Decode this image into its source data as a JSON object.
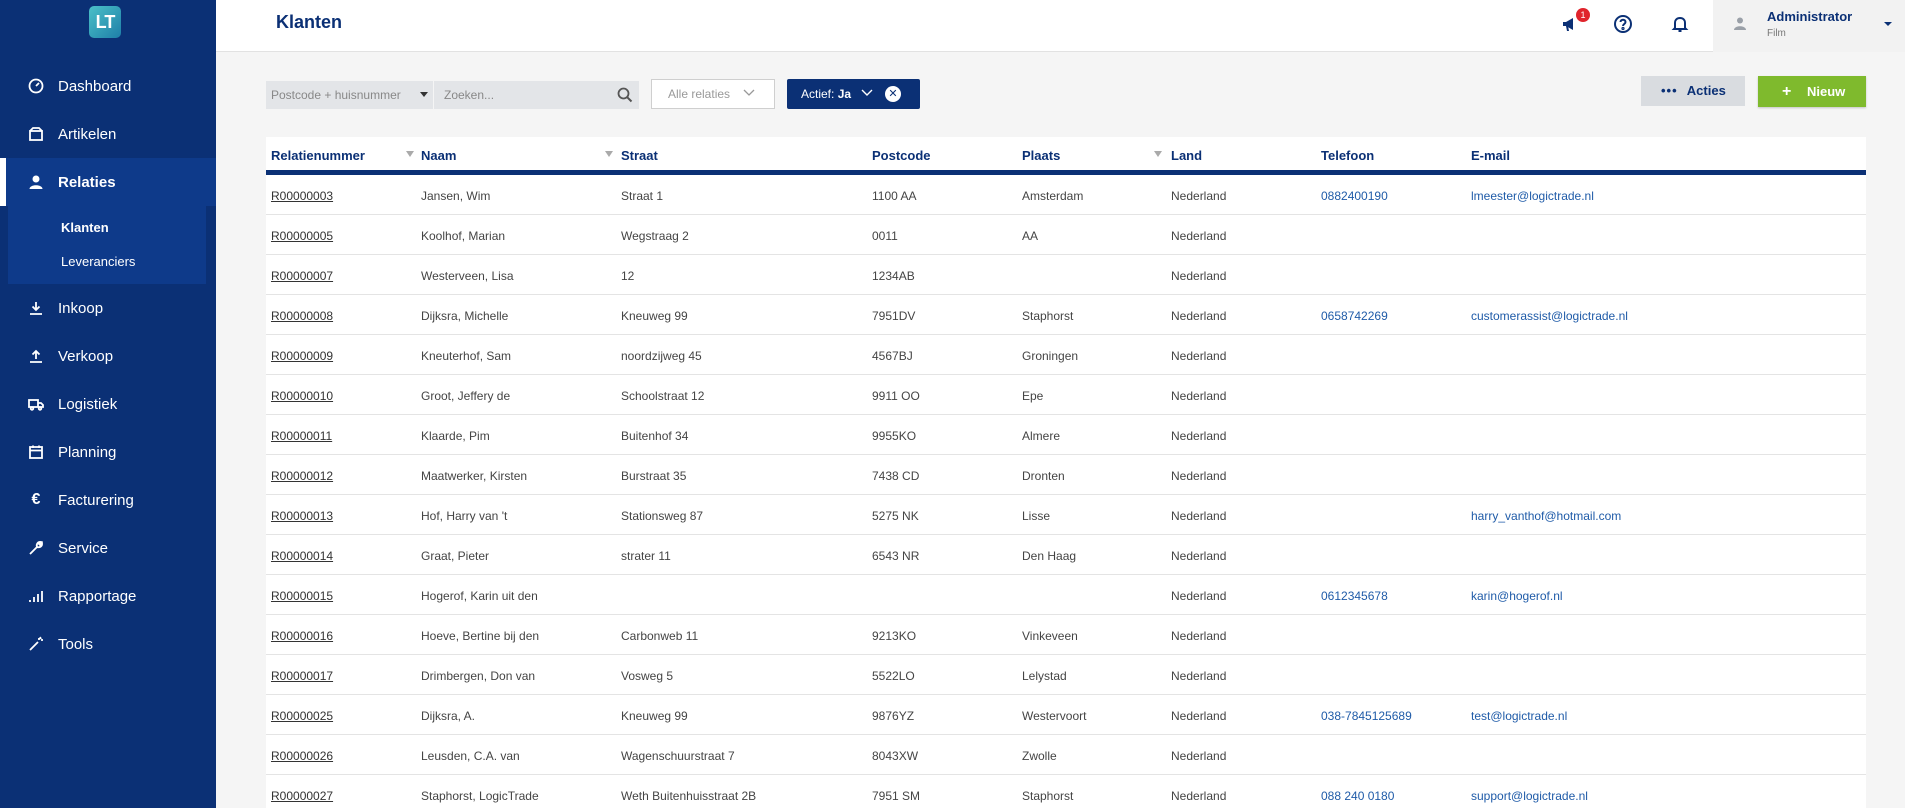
{
  "app": {
    "logo_text": "LT",
    "title": "Klanten"
  },
  "sidebar": {
    "items": [
      {
        "label": "Dashboard",
        "icon": "dashboard-icon"
      },
      {
        "label": "Artikelen",
        "icon": "box-icon"
      },
      {
        "label": "Relaties",
        "icon": "user-icon"
      },
      {
        "label": "Inkoop",
        "icon": "download-icon"
      },
      {
        "label": "Verkoop",
        "icon": "upload-icon"
      },
      {
        "label": "Logistiek",
        "icon": "truck-icon"
      },
      {
        "label": "Planning",
        "icon": "calendar-icon"
      },
      {
        "label": "Facturering",
        "icon": "euro-icon"
      },
      {
        "label": "Service",
        "icon": "wrench-icon"
      },
      {
        "label": "Rapportage",
        "icon": "bar-chart-icon"
      },
      {
        "label": "Tools",
        "icon": "magic-wand-icon"
      }
    ],
    "sub_items": [
      {
        "label": "Klanten"
      },
      {
        "label": "Leveranciers"
      }
    ]
  },
  "header": {
    "notifications_badge": "1",
    "user": {
      "name": "Administrator",
      "sub": "Film"
    }
  },
  "toolbar": {
    "postcode_placeholder": "Postcode + huisnummer",
    "search_placeholder": "Zoeken...",
    "filter_relaties": "Alle relaties",
    "filter_actief_prefix": "Actief:",
    "filter_actief_value": "Ja",
    "acties_label": "Acties",
    "nieuw_label": "Nieuw"
  },
  "table": {
    "columns": [
      "Relatienummer",
      "Naam",
      "Straat",
      "Postcode",
      "Plaats",
      "Land",
      "Telefoon",
      "E-mail"
    ],
    "rows": [
      [
        "R00000003",
        "Jansen, Wim",
        "Straat 1",
        "1100 AA",
        "Amsterdam",
        "Nederland",
        "0882400190",
        "lmeester@logictrade.nl"
      ],
      [
        "R00000005",
        "Koolhof, Marian",
        "Wegstraag 2",
        "0011",
        "AA",
        "Nederland",
        "",
        ""
      ],
      [
        "R00000007",
        "Westerveen, Lisa",
        " 12",
        "1234AB",
        "",
        "Nederland",
        "",
        ""
      ],
      [
        "R00000008",
        "Dijksra, Michelle",
        "Kneuweg 99",
        "7951DV",
        "Staphorst",
        "Nederland",
        "0658742269",
        "customerassist@logictrade.nl"
      ],
      [
        "R00000009",
        "Kneuterhof, Sam",
        "noordzijweg 45",
        "4567BJ",
        "Groningen",
        "Nederland",
        "",
        ""
      ],
      [
        "R00000010",
        "Groot, Jeffery de",
        "Schoolstraat 12",
        "9911 OO",
        "Epe",
        "Nederland",
        "",
        ""
      ],
      [
        "R00000011",
        "Klaarde, Pim",
        "Buitenhof 34",
        "9955KO",
        "Almere",
        "Nederland",
        "",
        ""
      ],
      [
        "R00000012",
        "Maatwerker, Kirsten",
        "Burstraat 35",
        "7438 CD",
        "Dronten",
        "Nederland",
        "",
        ""
      ],
      [
        "R00000013",
        "Hof, Harry van 't",
        "Stationsweg 87",
        "5275 NK",
        "Lisse",
        "Nederland",
        "",
        "harry_vanthof@hotmail.com"
      ],
      [
        "R00000014",
        "Graat, Pieter",
        "strater 11",
        "6543 NR",
        "Den Haag",
        "Nederland",
        "",
        ""
      ],
      [
        "R00000015",
        "Hogerof, Karin uit den",
        "",
        "",
        "",
        "Nederland",
        "0612345678",
        "karin@hogerof.nl"
      ],
      [
        "R00000016",
        "Hoeve, Bertine  bij den",
        "Carbonweb 11",
        "9213KO",
        "Vinkeveen",
        "Nederland",
        "",
        ""
      ],
      [
        "R00000017",
        "Drimbergen, Don van",
        "Vosweg 5",
        "5522LO",
        "Lelystad",
        "Nederland",
        "",
        ""
      ],
      [
        "R00000025",
        "Dijksra, A.",
        "Kneuweg 99",
        "9876YZ",
        "Westervoort",
        "Nederland",
        "038-7845125689",
        "test@logictrade.nl"
      ],
      [
        "R00000026",
        "Leusden, C.A. van",
        "Wagenschuurstraat 7",
        "8043XW",
        "Zwolle",
        "Nederland",
        "",
        ""
      ],
      [
        "R00000027",
        "Staphorst, LogicTrade",
        "Weth Buitenhuisstraat 2B",
        "7951 SM",
        "Staphorst",
        "Nederland",
        "088 240 0180",
        "support@logictrade.nl"
      ]
    ]
  },
  "colors": {
    "sidebar": "#0b3075",
    "accent_green": "#7fba2d",
    "badge_red": "#e0242c",
    "link_blue": "#1f5ba8"
  }
}
